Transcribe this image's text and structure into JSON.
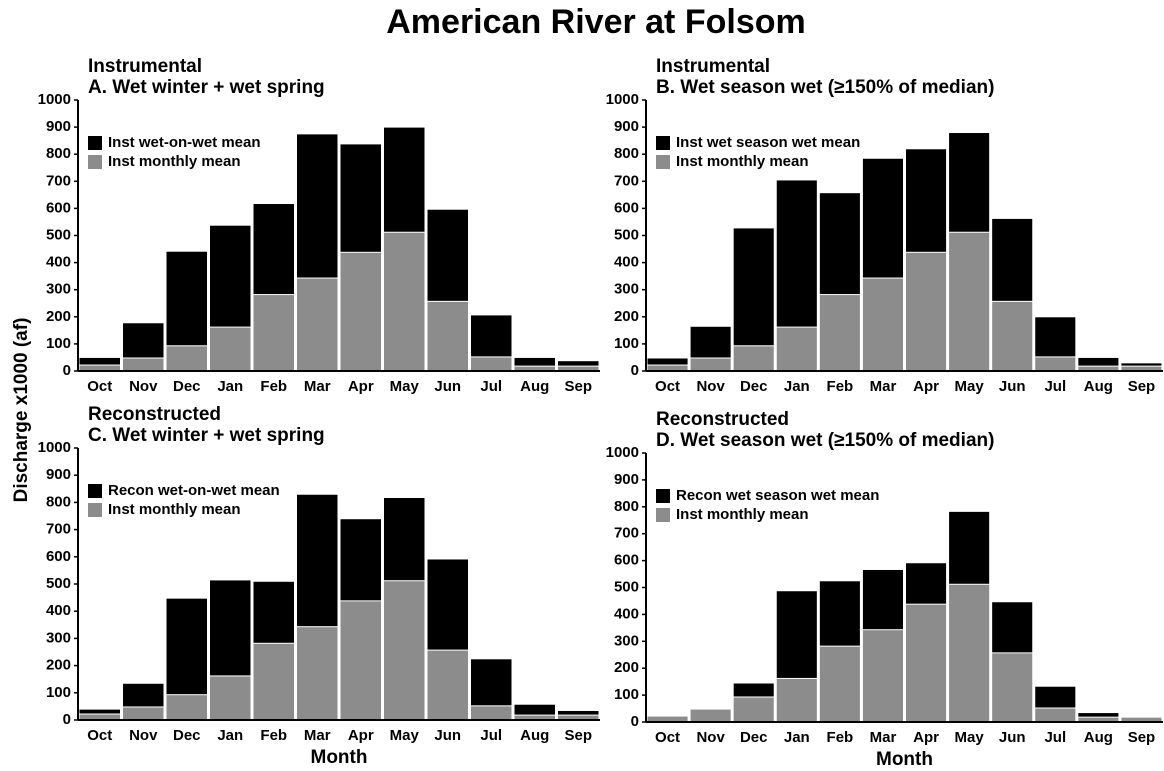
{
  "figure": {
    "title": "American River at Folsom",
    "ylabel": "Discharge x1000 (af)"
  },
  "chart_data": [
    {
      "type": "bar",
      "supertitle": "Instrumental",
      "title": "A. Wet winter + wet spring",
      "categories": [
        "Oct",
        "Nov",
        "Dec",
        "Jan",
        "Feb",
        "Mar",
        "Apr",
        "May",
        "Jun",
        "Jul",
        "Aug",
        "Sep"
      ],
      "series": [
        {
          "name": "Inst wet-on-wet mean",
          "color": "#000000",
          "values": [
            50,
            178,
            442,
            538,
            618,
            875,
            838,
            900,
            597,
            207,
            50,
            38
          ]
        },
        {
          "name": "Inst monthly mean",
          "color": "#8c8c8c",
          "values": [
            22,
            48,
            93,
            162,
            282,
            343,
            438,
            512,
            257,
            52,
            18,
            18
          ]
        }
      ],
      "ylim": [
        0,
        1000
      ],
      "yticks": [
        0,
        100,
        200,
        300,
        400,
        500,
        600,
        700,
        800,
        900,
        1000
      ]
    },
    {
      "type": "bar",
      "supertitle": "Instrumental",
      "title": "B. Wet season wet (≥150% of median)",
      "categories": [
        "Oct",
        "Nov",
        "Dec",
        "Jan",
        "Feb",
        "Mar",
        "Apr",
        "May",
        "Jun",
        "Jul",
        "Aug",
        "Sep"
      ],
      "series": [
        {
          "name": "Inst wet season wet mean",
          "color": "#000000",
          "values": [
            48,
            165,
            528,
            705,
            658,
            785,
            820,
            880,
            563,
            200,
            50,
            30
          ]
        },
        {
          "name": "Inst monthly mean",
          "color": "#8c8c8c",
          "values": [
            22,
            48,
            93,
            162,
            282,
            343,
            438,
            512,
            257,
            52,
            18,
            18
          ]
        }
      ],
      "ylim": [
        0,
        1000
      ],
      "yticks": [
        0,
        100,
        200,
        300,
        400,
        500,
        600,
        700,
        800,
        900,
        1000
      ]
    },
    {
      "type": "bar",
      "supertitle": "Reconstructed",
      "title": "C. Wet winter + wet spring",
      "xlabel": "Month",
      "categories": [
        "Oct",
        "Nov",
        "Dec",
        "Jan",
        "Feb",
        "Mar",
        "Apr",
        "May",
        "Jun",
        "Jul",
        "Aug",
        "Sep"
      ],
      "series": [
        {
          "name": "Recon wet-on-wet mean",
          "color": "#000000",
          "values": [
            40,
            135,
            448,
            515,
            510,
            830,
            740,
            818,
            592,
            225,
            58,
            35
          ]
        },
        {
          "name": "Inst monthly mean",
          "color": "#8c8c8c",
          "values": [
            22,
            48,
            93,
            162,
            282,
            343,
            438,
            512,
            257,
            52,
            18,
            18
          ]
        }
      ],
      "ylim": [
        0,
        1000
      ],
      "yticks": [
        0,
        100,
        200,
        300,
        400,
        500,
        600,
        700,
        800,
        900,
        1000
      ]
    },
    {
      "type": "bar",
      "supertitle": "Reconstructed",
      "title": "D. Wet season wet (≥150% of median)",
      "xlabel": "Month",
      "categories": [
        "Oct",
        "Nov",
        "Dec",
        "Jan",
        "Feb",
        "Mar",
        "Apr",
        "May",
        "Jun",
        "Jul",
        "Aug",
        "Sep"
      ],
      "series": [
        {
          "name": "Recon wet season wet mean",
          "color": "#000000",
          "values": [
            15,
            40,
            145,
            488,
            525,
            567,
            592,
            783,
            447,
            133,
            35,
            15
          ]
        },
        {
          "name": "Inst monthly mean",
          "color": "#8c8c8c",
          "values": [
            22,
            48,
            93,
            162,
            282,
            343,
            438,
            512,
            257,
            52,
            18,
            18
          ]
        }
      ],
      "ylim": [
        0,
        1000
      ],
      "yticks": [
        0,
        100,
        200,
        300,
        400,
        500,
        600,
        700,
        800,
        900,
        1000
      ]
    }
  ]
}
